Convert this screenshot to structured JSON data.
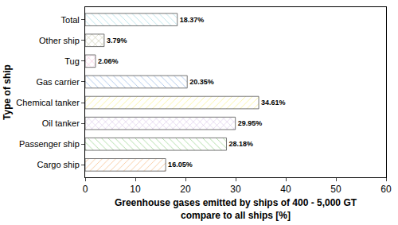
{
  "chart_data": {
    "type": "bar",
    "orientation": "horizontal",
    "x_label": "Greenhouse gases emitted by ships of 400 - 5,000 GT\ncompare to all ships [%]",
    "y_label": "Type of ship",
    "categories": [
      "Cargo ship",
      "Passenger ship",
      "Oil tanker",
      "Chemical tanker",
      "Gas carrier",
      "Tug",
      "Other ship",
      "Total"
    ],
    "values": [
      16.05,
      28.18,
      29.95,
      34.61,
      20.35,
      2.06,
      3.79,
      18.37
    ],
    "value_labels": [
      "16.05%",
      "28.18%",
      "29.95%",
      "34.61%",
      "20.35%",
      "2.06%",
      "3.79%",
      "18.37%"
    ],
    "colors": [
      "#f8c79b",
      "#a9dba0",
      "#cdb4e0",
      "#fbf39b",
      "#a9c4ea",
      "#f4a9d0",
      "#b5b58c",
      "#b7e3ea"
    ],
    "xlim": [
      0,
      60
    ],
    "xticks": [
      0,
      10,
      20,
      30,
      40,
      50,
      60
    ],
    "grid": false,
    "data_labels": true
  }
}
